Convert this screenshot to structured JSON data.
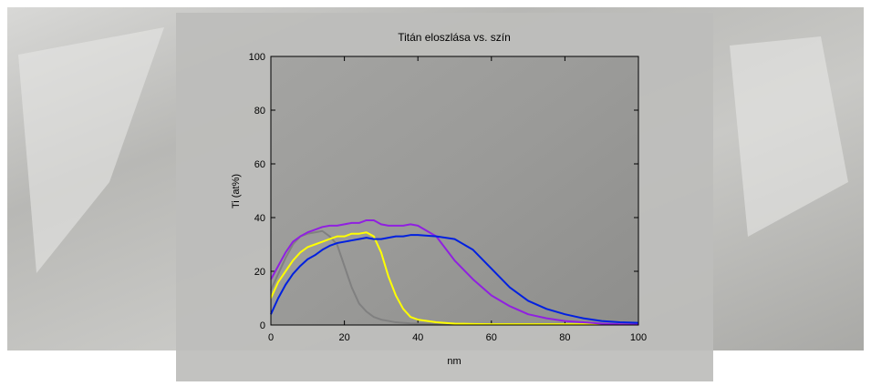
{
  "chart_data": {
    "type": "line",
    "title": "Titán eloszlása vs. szín",
    "xlabel": "nm",
    "ylabel": "Ti (at%)",
    "x": [
      0,
      2,
      4,
      6,
      8,
      10,
      12,
      14,
      16,
      18,
      20,
      22,
      24,
      26,
      28,
      30,
      32,
      34,
      36,
      38,
      40,
      45,
      50,
      55,
      60,
      65,
      70,
      75,
      80,
      85,
      90,
      95,
      100
    ],
    "series": [
      {
        "color": "#808080",
        "values": [
          13,
          19,
          25,
          30,
          33,
          34,
          34.5,
          35,
          33,
          30,
          22,
          14,
          8,
          5,
          3,
          2,
          1.5,
          1,
          0.8,
          0.6,
          0.5,
          0.4,
          0.3,
          0.3,
          0.3,
          0.3,
          0.3,
          0.3,
          0.3,
          0.3,
          0.3,
          0.3,
          0.3
        ]
      },
      {
        "color": "#ffff00",
        "values": [
          10,
          16,
          20,
          24,
          27,
          29,
          30,
          31,
          32,
          33,
          33,
          34,
          34,
          34.5,
          33,
          27,
          18,
          11,
          6,
          3,
          2,
          1,
          0.5,
          0.4,
          0.3,
          0.3,
          0.3,
          0.3,
          0.3,
          0.3,
          0.3,
          0.3,
          0.3
        ]
      },
      {
        "color": "#9020e0",
        "values": [
          17,
          22,
          27,
          31,
          33,
          34.5,
          35.5,
          36.5,
          37,
          37,
          37.5,
          38,
          38,
          39,
          39,
          37.5,
          37,
          37,
          37,
          37.5,
          37,
          33,
          24,
          17,
          11,
          7,
          4,
          2.5,
          1.5,
          1,
          0.5,
          0.3,
          0.2
        ]
      },
      {
        "color": "#0020e0",
        "values": [
          4,
          10,
          15,
          19,
          22,
          24.5,
          26,
          28,
          29.5,
          30.5,
          31,
          31.5,
          32,
          32.5,
          32,
          32,
          32.5,
          33,
          33,
          33.5,
          33.5,
          33,
          32,
          28,
          21,
          14,
          9,
          6,
          4,
          2.5,
          1.5,
          1,
          0.8
        ]
      }
    ],
    "xlim": [
      0,
      100
    ],
    "xticks": [
      0,
      20,
      40,
      60,
      80,
      100
    ],
    "ylim": [
      0,
      100
    ],
    "yticks": [
      0,
      20,
      40,
      60,
      80,
      100
    ]
  }
}
